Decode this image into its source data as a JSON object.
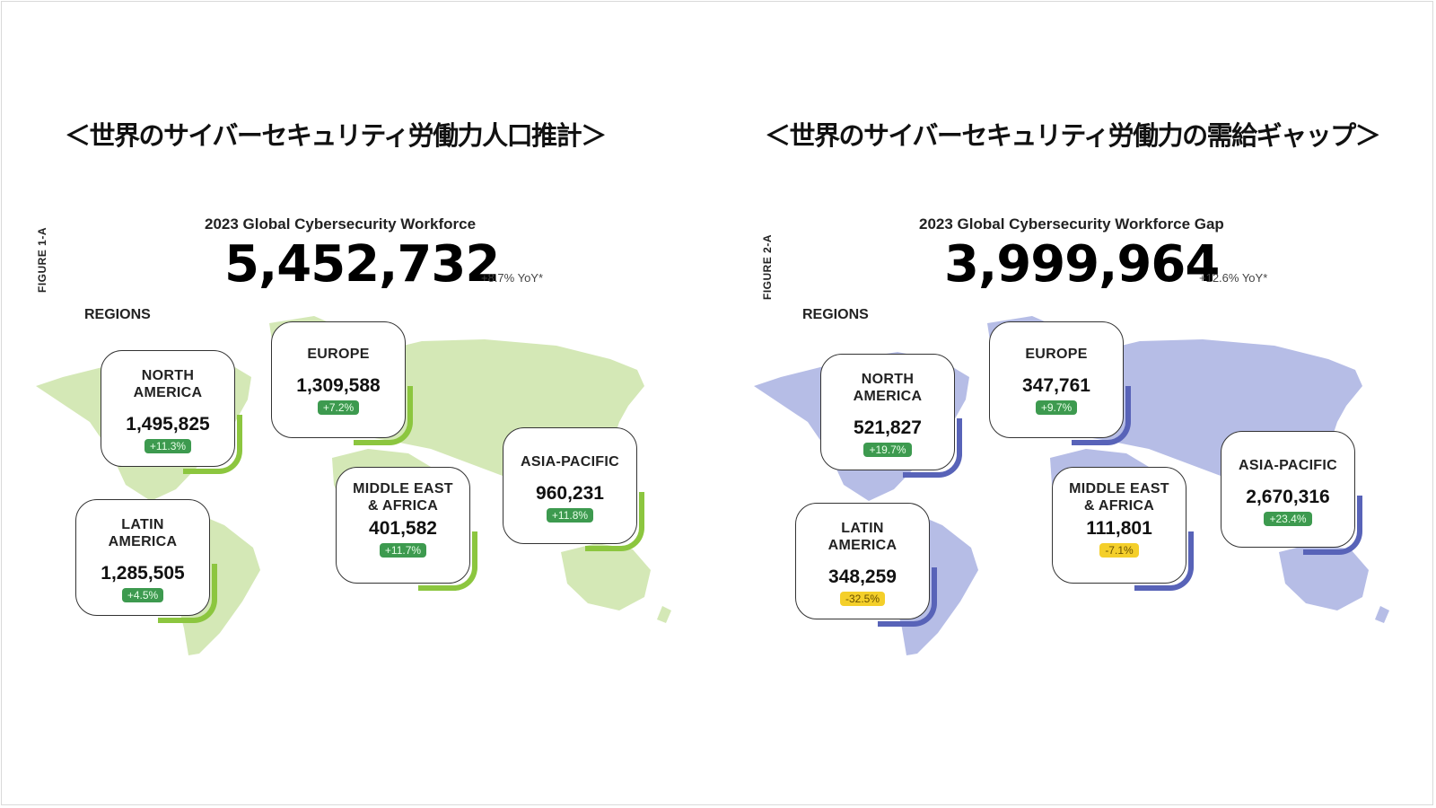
{
  "colors": {
    "workforce_map": "#d4e8b6",
    "workforce_accent": "#8cc63f",
    "gap_map": "#b6bde6",
    "gap_accent": "#5863b8",
    "badge_positive": "#3d9a4f",
    "badge_negative": "#f4cf2a"
  },
  "left": {
    "heading": "＜世界のサイバーセキュリティ労働力人口推計＞",
    "figure_label": "FIGURE 1-A",
    "subtitle": "2023 Global Cybersecurity Workforce",
    "total": "5,452,732",
    "yoy": "+8.7% YoY*",
    "regions_label": "REGIONS",
    "regions": [
      {
        "name": "NORTH\nAMERICA",
        "value": "1,495,825",
        "change": "+11.3%"
      },
      {
        "name": "EUROPE",
        "value": "1,309,588",
        "change": "+7.2%"
      },
      {
        "name": "LATIN\nAMERICA",
        "value": "1,285,505",
        "change": "+4.5%"
      },
      {
        "name": "MIDDLE EAST\n& AFRICA",
        "value": "401,582",
        "change": "+11.7%"
      },
      {
        "name": "ASIA-PACIFIC",
        "value": "960,231",
        "change": "+11.8%"
      }
    ]
  },
  "right": {
    "heading": "＜世界のサイバーセキュリティ労働力の需給ギャップ＞",
    "figure_label": "FIGURE 2-A",
    "subtitle": "2023 Global Cybersecurity Workforce Gap",
    "total": "3,999,964",
    "yoy": "+12.6% YoY*",
    "regions_label": "REGIONS",
    "regions": [
      {
        "name": "NORTH\nAMERICA",
        "value": "521,827",
        "change": "+19.7%"
      },
      {
        "name": "EUROPE",
        "value": "347,761",
        "change": "+9.7%"
      },
      {
        "name": "LATIN\nAMERICA",
        "value": "348,259",
        "change": "-32.5%"
      },
      {
        "name": "MIDDLE EAST\n& AFRICA",
        "value": "111,801",
        "change": "-7.1%"
      },
      {
        "name": "ASIA-PACIFIC",
        "value": "2,670,316",
        "change": "+23.4%"
      }
    ]
  }
}
